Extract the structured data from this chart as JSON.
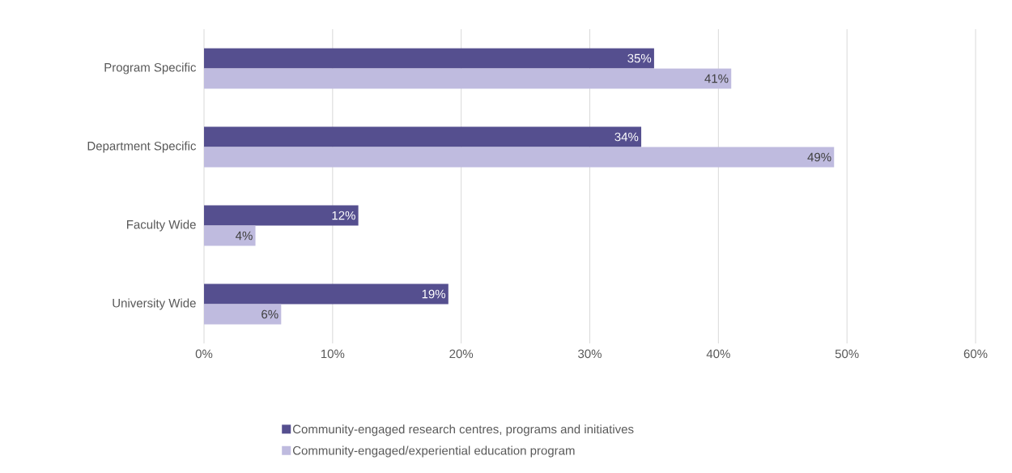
{
  "chart_data": {
    "type": "bar",
    "orientation": "horizontal",
    "categories": [
      "Program Specific",
      "Department Specific",
      "Faculty Wide",
      "University Wide"
    ],
    "series": [
      {
        "name": "Community-engaged research centres, programs and initiatives",
        "color": "#554f8f",
        "values": [
          35,
          34,
          12,
          19
        ],
        "value_labels": [
          "35%",
          "34%",
          "12%",
          "19%"
        ]
      },
      {
        "name": "Community-engaged/experiential education program",
        "color": "#bfbbdf",
        "values": [
          41,
          49,
          4,
          6
        ],
        "value_labels": [
          "41%",
          "49%",
          "4%",
          "6%"
        ]
      }
    ],
    "xlim": [
      0,
      60
    ],
    "xticks": [
      {
        "value": 0,
        "label": "0%"
      },
      {
        "value": 10,
        "label": "10%"
      },
      {
        "value": 20,
        "label": "20%"
      },
      {
        "value": 30,
        "label": "30%"
      },
      {
        "value": 40,
        "label": "40%"
      },
      {
        "value": 50,
        "label": "50%"
      },
      {
        "value": 60,
        "label": "60%"
      }
    ],
    "grid": "x",
    "legend": "bottom"
  }
}
